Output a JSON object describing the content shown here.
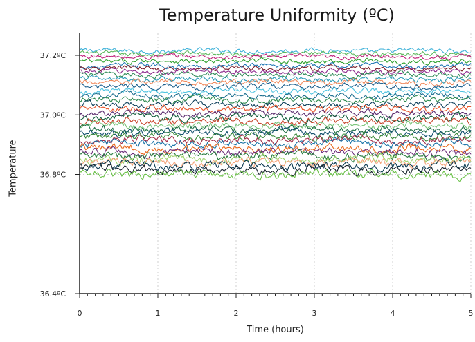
{
  "chart_data": {
    "type": "line",
    "title": "Temperature Uniformity (ºC)",
    "xlabel": "Time (hours)",
    "ylabel": "Temperature",
    "xlim": [
      0,
      5
    ],
    "ylim": [
      36.4,
      37.25
    ],
    "x_ticks": [
      "0",
      "1",
      "2",
      "3",
      "4",
      "5"
    ],
    "y_ticks": [
      {
        "value": 36.4,
        "label": "36.4ºC"
      },
      {
        "value": 36.8,
        "label": "36.8ºC"
      },
      {
        "value": 37.0,
        "label": "37.0ºC"
      },
      {
        "value": 37.2,
        "label": "37.2ºC"
      }
    ],
    "grid": {
      "vertical": true,
      "horizontal_at": [
        36.8,
        37.0,
        37.2
      ],
      "style": "dashed"
    },
    "legend": "none",
    "series": [
      {
        "baseline": 37.215,
        "color": "#3fb2d9"
      },
      {
        "baseline": 37.205,
        "color": "#5cb85c"
      },
      {
        "baseline": 37.195,
        "color": "#c0217a"
      },
      {
        "baseline": 37.18,
        "color": "#2ca02c"
      },
      {
        "baseline": 37.165,
        "color": "#1f77b4"
      },
      {
        "baseline": 37.155,
        "color": "#7a1f2b"
      },
      {
        "baseline": 37.145,
        "color": "#8e2c8e"
      },
      {
        "baseline": 37.135,
        "color": "#2e8b57"
      },
      {
        "baseline": 37.12,
        "color": "#2a9bb8"
      },
      {
        "baseline": 37.11,
        "color": "#f08a5d"
      },
      {
        "baseline": 37.095,
        "color": "#1b5e8c"
      },
      {
        "baseline": 37.08,
        "color": "#4ec3e0"
      },
      {
        "baseline": 37.065,
        "color": "#1c6f8f"
      },
      {
        "baseline": 37.05,
        "color": "#2d8a4e"
      },
      {
        "baseline": 37.035,
        "color": "#0b3d59"
      },
      {
        "baseline": 37.02,
        "color": "#e8552b"
      },
      {
        "baseline": 37.005,
        "color": "#5a2a6e"
      },
      {
        "baseline": 36.99,
        "color": "#0f5c3a"
      },
      {
        "baseline": 36.978,
        "color": "#c8462c"
      },
      {
        "baseline": 36.965,
        "color": "#7bc57b"
      },
      {
        "baseline": 36.952,
        "color": "#1e6e45"
      },
      {
        "baseline": 36.94,
        "color": "#0e4d6b"
      },
      {
        "baseline": 36.928,
        "color": "#3a8a3a"
      },
      {
        "baseline": 36.915,
        "color": "#a32f4a"
      },
      {
        "baseline": 36.902,
        "color": "#1b75a8"
      },
      {
        "baseline": 36.888,
        "color": "#e86a1f"
      },
      {
        "baseline": 36.875,
        "color": "#6c2d7a"
      },
      {
        "baseline": 36.862,
        "color": "#2a7d3f"
      },
      {
        "baseline": 36.85,
        "color": "#9fd36e"
      },
      {
        "baseline": 36.84,
        "color": "#f4a57c"
      },
      {
        "baseline": 36.828,
        "color": "#0d3b52"
      },
      {
        "baseline": 36.815,
        "color": "#14202a"
      },
      {
        "baseline": 36.8,
        "color": "#6cc24a"
      }
    ]
  }
}
